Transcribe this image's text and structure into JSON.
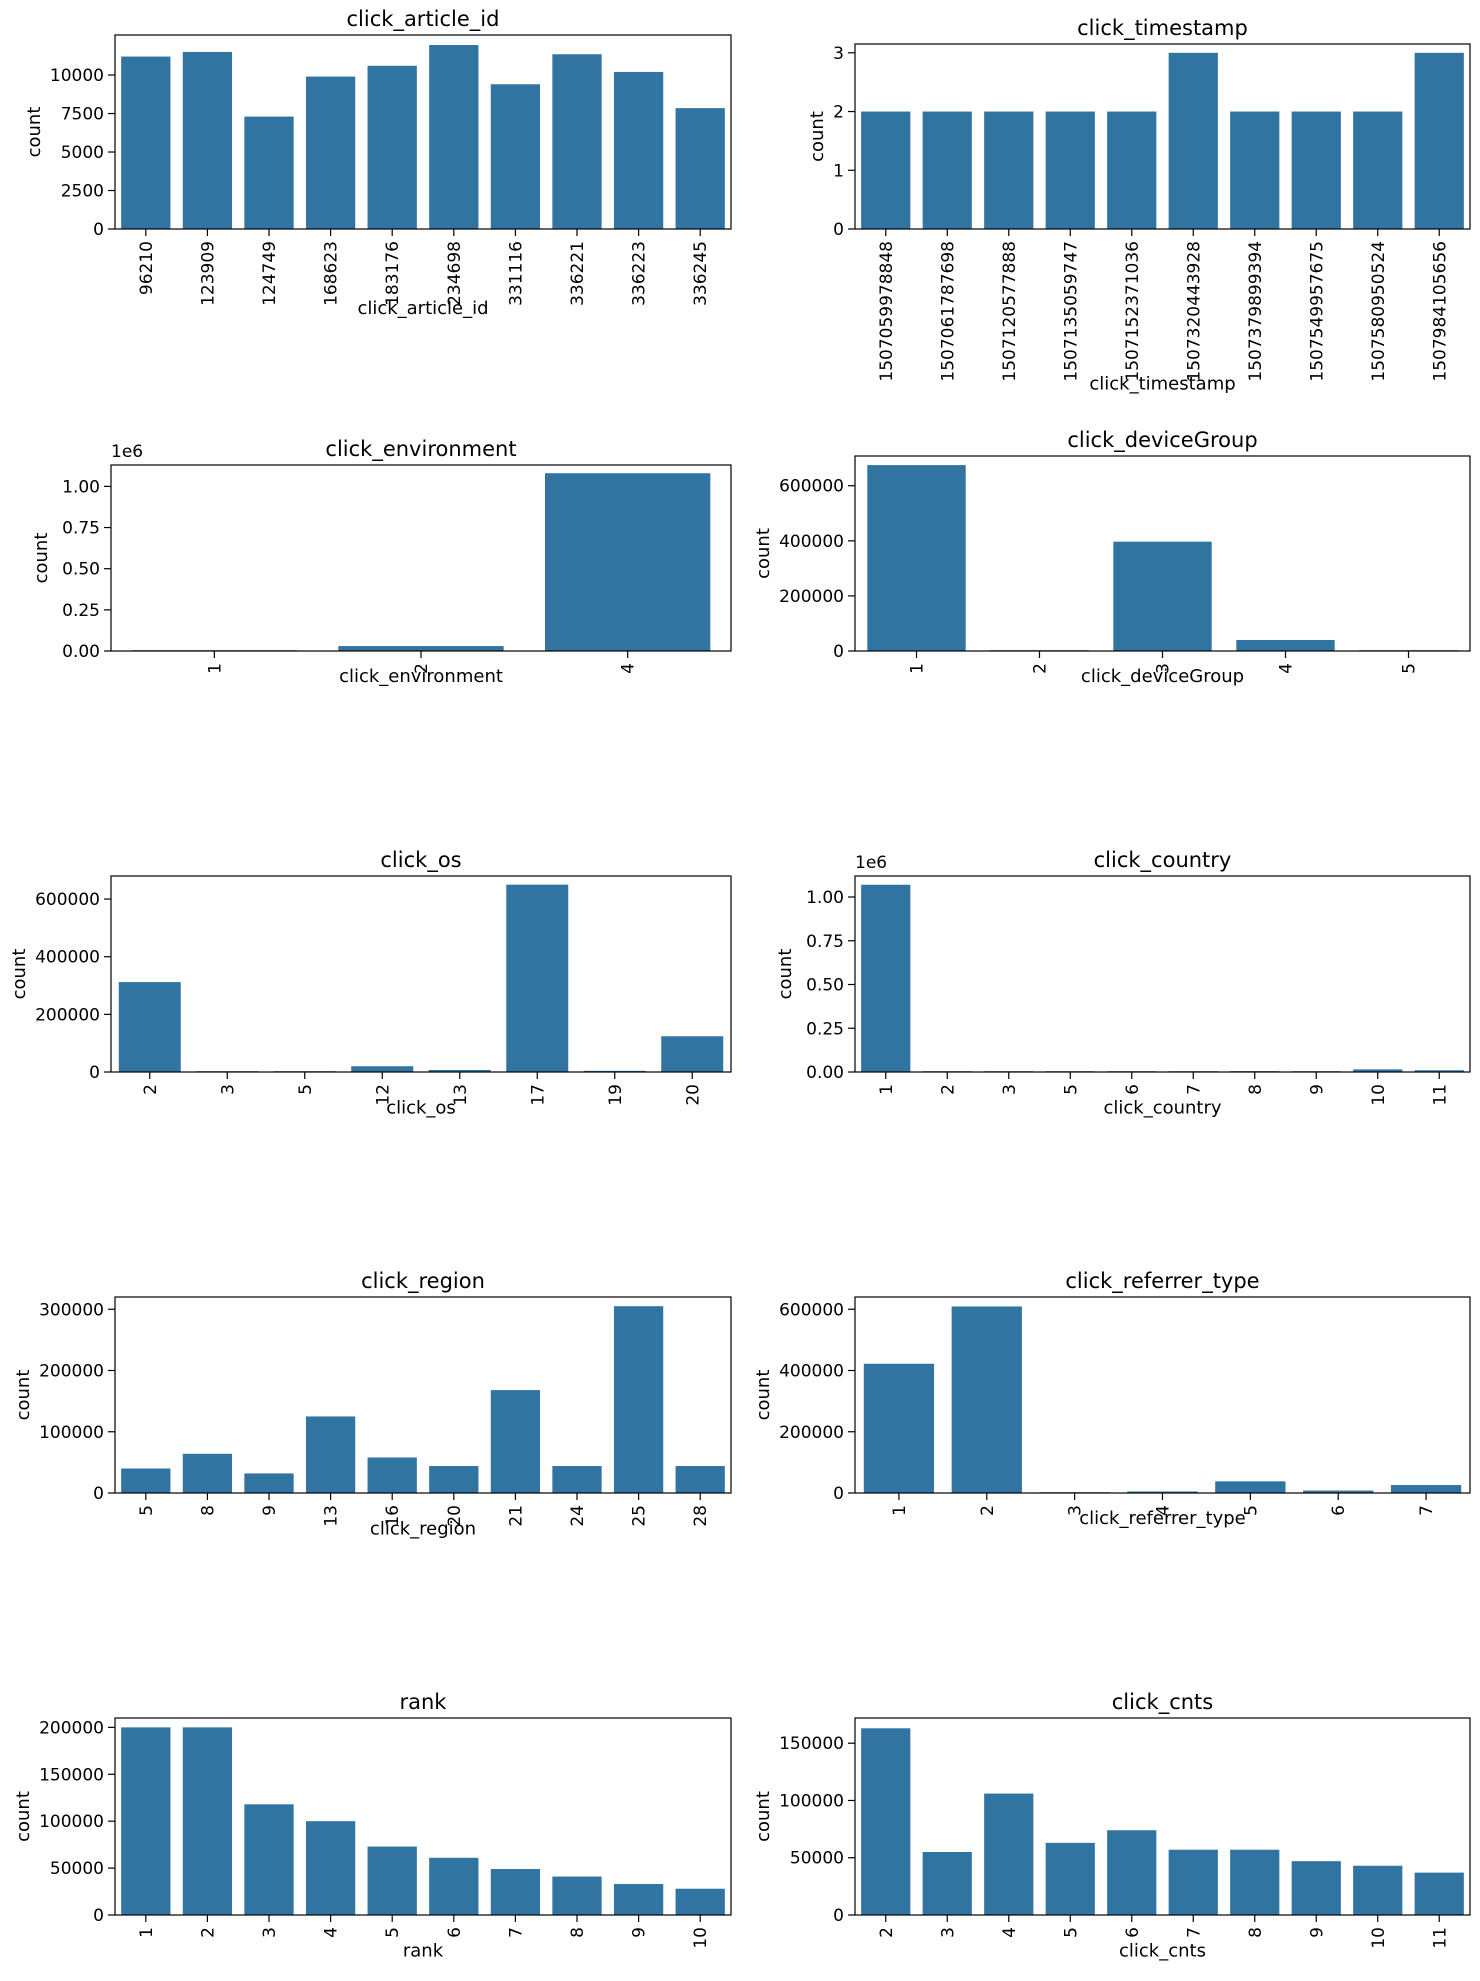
{
  "bar_color": "#3274a1",
  "chart_data": [
    {
      "type": "bar",
      "title": "click_article_id",
      "xlabel": "click_article_id",
      "ylabel": "count",
      "ylim": [
        0,
        12600
      ],
      "yticks": [
        0,
        2500,
        5000,
        7500,
        10000
      ],
      "ytick_labels": [
        "0",
        "2500",
        "5000",
        "7500",
        "10000"
      ],
      "offset_label": "",
      "categories": [
        "96210",
        "123909",
        "124749",
        "168623",
        "183176",
        "234698",
        "331116",
        "336221",
        "336223",
        "336245"
      ],
      "values": [
        11200,
        11500,
        7300,
        9900,
        10600,
        11950,
        9400,
        11350,
        10200,
        7850
      ]
    },
    {
      "type": "bar",
      "title": "click_timestamp",
      "xlabel": "click_timestamp",
      "ylabel": "count",
      "ylim": [
        0,
        3.15
      ],
      "yticks": [
        0,
        1,
        2,
        3
      ],
      "ytick_labels": [
        "0",
        "1",
        "2",
        "3"
      ],
      "offset_label": "",
      "categories": [
        "1507059978848",
        "1507061787698",
        "1507120577888",
        "1507135059747",
        "1507152371036",
        "1507320443928",
        "1507379899394",
        "1507549957675",
        "1507580950524",
        "1507984105656"
      ],
      "values": [
        2,
        2,
        2,
        2,
        2,
        3,
        2,
        2,
        2,
        3
      ]
    },
    {
      "type": "bar",
      "title": "click_environment",
      "xlabel": "click_environment",
      "ylabel": "count",
      "ylim": [
        0,
        1.13
      ],
      "yticks": [
        0,
        0.25,
        0.5,
        0.75,
        1.0
      ],
      "ytick_labels": [
        "0.00",
        "0.25",
        "0.50",
        "0.75",
        "1.00"
      ],
      "offset_label": "1e6",
      "categories": [
        "1",
        "2",
        "4"
      ],
      "values": [
        0.004,
        0.03,
        1.08
      ]
    },
    {
      "type": "bar",
      "title": "click_deviceGroup",
      "xlabel": "click_deviceGroup",
      "ylabel": "count",
      "ylim": [
        0,
        708000
      ],
      "yticks": [
        0,
        200000,
        400000,
        600000
      ],
      "ytick_labels": [
        "0",
        "200000",
        "400000",
        "600000"
      ],
      "offset_label": "",
      "categories": [
        "1",
        "2",
        "3",
        "4",
        "5"
      ],
      "values": [
        675000,
        1000,
        397000,
        40000,
        500
      ]
    },
    {
      "type": "bar",
      "title": "click_os",
      "xlabel": "click_os",
      "ylabel": "count",
      "ylim": [
        0,
        680000
      ],
      "yticks": [
        0,
        200000,
        400000,
        600000
      ],
      "ytick_labels": [
        "0",
        "200000",
        "400000",
        "600000"
      ],
      "offset_label": "",
      "categories": [
        "2",
        "3",
        "5",
        "12",
        "13",
        "17",
        "19",
        "20"
      ],
      "values": [
        312000,
        1000,
        1500,
        20000,
        7000,
        650000,
        4000,
        124000
      ]
    },
    {
      "type": "bar",
      "title": "click_country",
      "xlabel": "click_country",
      "ylabel": "count",
      "ylim": [
        0,
        1.12
      ],
      "yticks": [
        0,
        0.25,
        0.5,
        0.75,
        1.0
      ],
      "ytick_labels": [
        "0.00",
        "0.25",
        "0.50",
        "0.75",
        "1.00"
      ],
      "offset_label": "1e6",
      "categories": [
        "1",
        "2",
        "3",
        "5",
        "6",
        "7",
        "8",
        "9",
        "10",
        "11"
      ],
      "values": [
        1.07,
        0.001,
        0.001,
        0.001,
        0.001,
        0.001,
        0.005,
        0.001,
        0.015,
        0.01
      ]
    },
    {
      "type": "bar",
      "title": "click_region",
      "xlabel": "click_region",
      "ylabel": "count",
      "ylim": [
        0,
        320000
      ],
      "yticks": [
        0,
        100000,
        200000,
        300000
      ],
      "ytick_labels": [
        "0",
        "100000",
        "200000",
        "300000"
      ],
      "offset_label": "",
      "categories": [
        "5",
        "8",
        "9",
        "13",
        "16",
        "20",
        "21",
        "24",
        "25",
        "28"
      ],
      "values": [
        40000,
        64000,
        32000,
        125000,
        58000,
        44000,
        168000,
        44000,
        305000,
        44000
      ]
    },
    {
      "type": "bar",
      "title": "click_referrer_type",
      "xlabel": "click_referrer_type",
      "ylabel": "count",
      "ylim": [
        0,
        640000
      ],
      "yticks": [
        0,
        200000,
        400000,
        600000
      ],
      "ytick_labels": [
        "0",
        "200000",
        "400000",
        "600000"
      ],
      "offset_label": "",
      "categories": [
        "1",
        "2",
        "3",
        "4",
        "5",
        "6",
        "7"
      ],
      "values": [
        422000,
        609000,
        1000,
        5000,
        38000,
        8000,
        26000
      ]
    },
    {
      "type": "bar",
      "title": "rank",
      "xlabel": "rank",
      "ylabel": "count",
      "ylim": [
        0,
        210000
      ],
      "yticks": [
        0,
        50000,
        100000,
        150000,
        200000
      ],
      "ytick_labels": [
        "0",
        "50000",
        "100000",
        "150000",
        "200000"
      ],
      "offset_label": "",
      "categories": [
        "1",
        "2",
        "3",
        "4",
        "5",
        "6",
        "7",
        "8",
        "9",
        "10"
      ],
      "values": [
        200000,
        200000,
        118000,
        100000,
        73000,
        61000,
        49000,
        41000,
        33000,
        28000
      ]
    },
    {
      "type": "bar",
      "title": "click_cnts",
      "xlabel": "click_cnts",
      "ylabel": "count",
      "ylim": [
        0,
        172000
      ],
      "yticks": [
        0,
        50000,
        100000,
        150000
      ],
      "ytick_labels": [
        "0",
        "50000",
        "100000",
        "150000"
      ],
      "offset_label": "",
      "categories": [
        "2",
        "3",
        "4",
        "5",
        "6",
        "7",
        "8",
        "9",
        "10",
        "11"
      ],
      "values": [
        163000,
        55000,
        106000,
        63000,
        74000,
        57000,
        57000,
        47000,
        43000,
        37000
      ]
    }
  ]
}
